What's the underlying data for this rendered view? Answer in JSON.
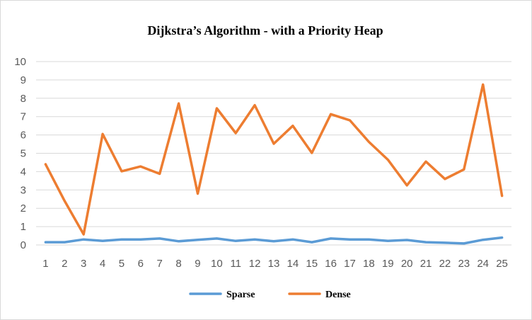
{
  "chart_data": {
    "type": "line",
    "title": "Dijkstra’s Algorithm - with a Priority Heap",
    "xlabel": "",
    "ylabel": "",
    "categories": [
      "1",
      "2",
      "3",
      "4",
      "5",
      "6",
      "7",
      "8",
      "9",
      "10",
      "11",
      "12",
      "13",
      "14",
      "15",
      "16",
      "17",
      "18",
      "19",
      "20",
      "21",
      "22",
      "23",
      "24",
      "25"
    ],
    "ylim": [
      0,
      10
    ],
    "yticks": [
      "0",
      "1",
      "2",
      "3",
      "4",
      "5",
      "6",
      "7",
      "8",
      "9",
      "10"
    ],
    "grid": true,
    "legend_position": "bottom",
    "series": [
      {
        "name": "Sparse",
        "color": "#5b9bd5",
        "values": [
          0.15,
          0.15,
          0.3,
          0.22,
          0.3,
          0.3,
          0.35,
          0.2,
          0.28,
          0.35,
          0.22,
          0.3,
          0.2,
          0.3,
          0.15,
          0.35,
          0.3,
          0.3,
          0.22,
          0.27,
          0.15,
          0.12,
          0.08,
          0.28,
          0.4
        ]
      },
      {
        "name": "Dense",
        "color": "#ed7d31",
        "values": [
          4.4,
          2.4,
          0.58,
          6.05,
          4.02,
          4.28,
          3.88,
          7.72,
          2.8,
          7.45,
          6.1,
          7.62,
          5.52,
          6.5,
          5.02,
          7.13,
          6.8,
          5.62,
          4.65,
          3.25,
          4.55,
          3.6,
          4.12,
          8.75,
          2.68
        ]
      }
    ]
  }
}
